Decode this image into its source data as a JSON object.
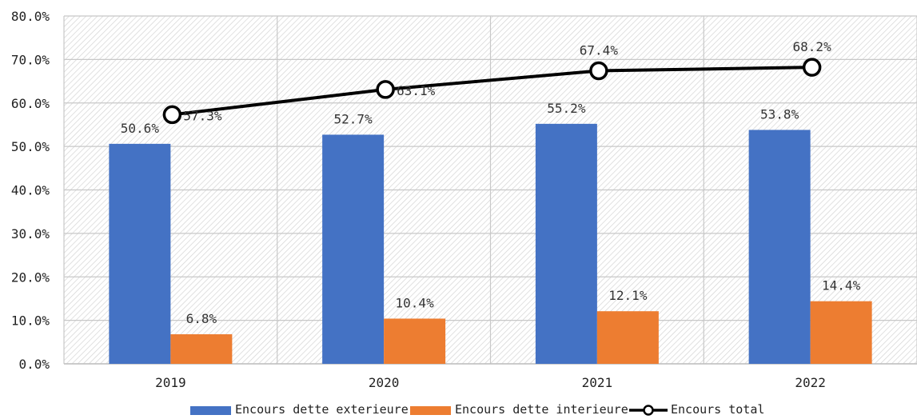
{
  "chart_data": {
    "type": "bar",
    "categories": [
      "2019",
      "2020",
      "2021",
      "2022"
    ],
    "series": [
      {
        "name": "Encours dette exterieure",
        "kind": "bar",
        "values": [
          50.6,
          52.7,
          55.2,
          53.8
        ],
        "labels": [
          "50.6%",
          "52.7%",
          "55.2%",
          "53.8%"
        ],
        "color": "#4472C4"
      },
      {
        "name": "Encours dette interieure",
        "kind": "bar",
        "values": [
          6.8,
          10.4,
          12.1,
          14.4
        ],
        "labels": [
          "6.8%",
          "10.4%",
          "12.1%",
          "14.4%"
        ],
        "color": "#ED7D31"
      },
      {
        "name": "Encours total",
        "kind": "line",
        "values": [
          57.3,
          63.1,
          67.4,
          68.2
        ],
        "labels": [
          "57.3%",
          "63.1%",
          "67.4%",
          "68.2%"
        ],
        "color": "#000000"
      }
    ],
    "ylim": [
      0,
      80
    ],
    "yticks": [
      "0.0%",
      "10.0%",
      "20.0%",
      "30.0%",
      "40.0%",
      "50.0%",
      "60.0%",
      "70.0%",
      "80.0%"
    ],
    "yticks_values": [
      0,
      10,
      20,
      30,
      40,
      50,
      60,
      70,
      80
    ],
    "title": "",
    "xlabel": "",
    "ylabel": "",
    "grid": true,
    "legend_position": "bottom"
  }
}
